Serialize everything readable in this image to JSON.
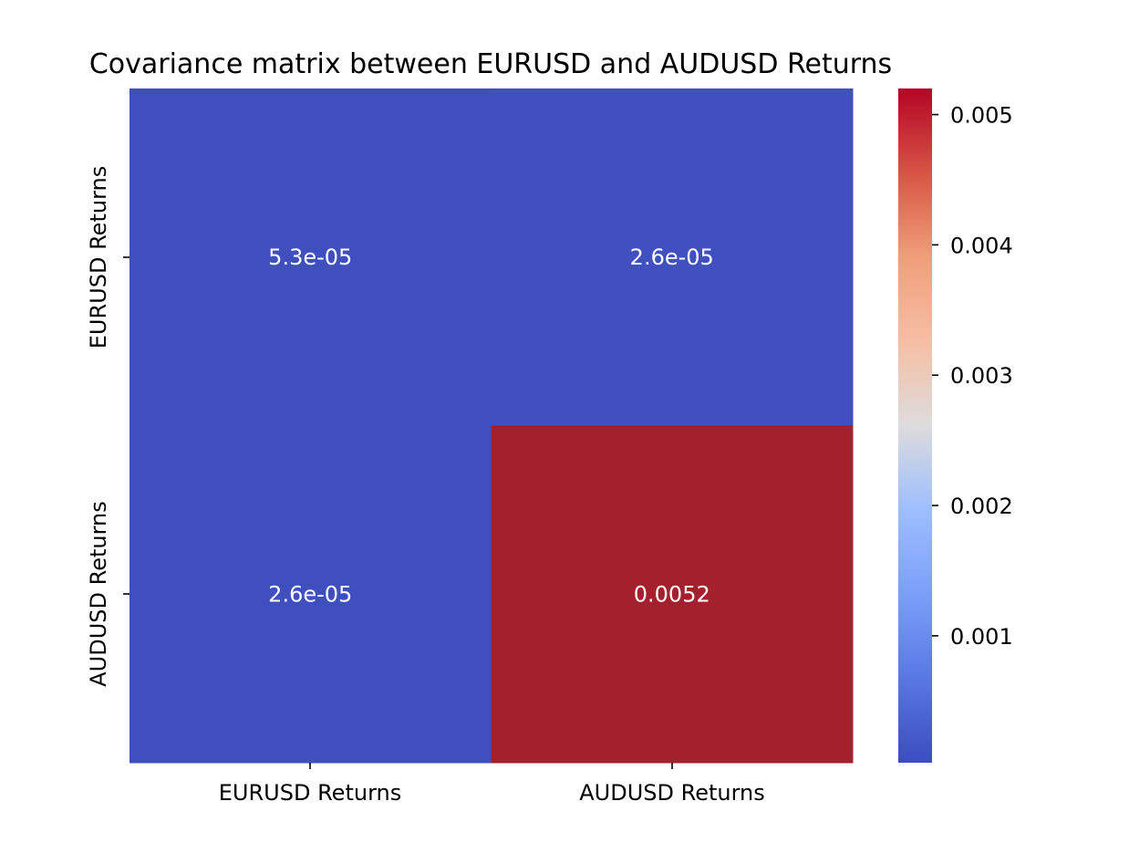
{
  "chart_data": {
    "type": "heatmap",
    "title": "Covariance matrix between EURUSD and AUDUSD Returns",
    "x_categories": [
      "EURUSD Returns",
      "AUDUSD Returns"
    ],
    "y_categories": [
      "EURUSD Returns",
      "AUDUSD Returns"
    ],
    "values": [
      [
        5.3e-05,
        2.6e-05
      ],
      [
        2.6e-05,
        0.0052
      ]
    ],
    "annotations": [
      [
        "5.3e-05",
        "2.6e-05"
      ],
      [
        "2.6e-05",
        "0.0052"
      ]
    ],
    "colormap": "coolwarm",
    "colors": {
      "low": "#3f4fbe",
      "low_alt": "#4050c0",
      "high": "#a3212d"
    },
    "colorbar": {
      "range": [
        2.6e-05,
        0.0052
      ],
      "ticks": [
        0.001,
        0.002,
        0.003,
        0.004,
        0.005
      ],
      "tick_labels": [
        "0.001",
        "0.002",
        "0.003",
        "0.004",
        "0.005"
      ]
    },
    "grid": false,
    "xlabel": "",
    "ylabel": ""
  }
}
